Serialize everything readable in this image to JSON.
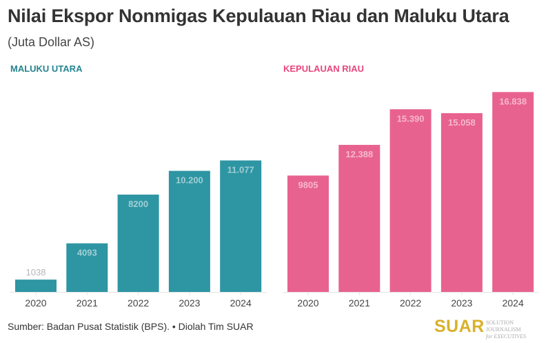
{
  "title": "Nilai Ekspor Nonmigas Kepulauan Riau dan Maluku Utara",
  "subtitle": "(Juta Dollar AS)",
  "footer": "Sumber: Badan Pusat Statistik (BPS). • Diolah Tim SUAR",
  "logo": {
    "name": "SUAR",
    "tagline1": "SOLUTION JOURNALISM",
    "tagline2": "for EXECUTIVES"
  },
  "chart_data": [
    {
      "type": "bar",
      "title": "MALUKU UTARA",
      "color": "#2e95a3",
      "title_color": "#23848f",
      "categories": [
        "2020",
        "2021",
        "2022",
        "2023",
        "2024"
      ],
      "values": [
        1038,
        4093,
        8200,
        10200,
        11077
      ],
      "labels": [
        "1038",
        "4093",
        "8200",
        "10.200",
        "11.077"
      ],
      "ylim": [
        0,
        17500
      ],
      "grid": false
    },
    {
      "type": "bar",
      "title": "KEPULAUAN RIAU",
      "color": "#e8628f",
      "title_color": "#e8457e",
      "categories": [
        "2020",
        "2021",
        "2022",
        "2023",
        "2024"
      ],
      "values": [
        9805,
        12388,
        15390,
        15058,
        16838
      ],
      "labels": [
        "9805",
        "12.388",
        "15.390",
        "15.058",
        "16.838"
      ],
      "ylim": [
        0,
        17500
      ],
      "grid": false
    }
  ]
}
